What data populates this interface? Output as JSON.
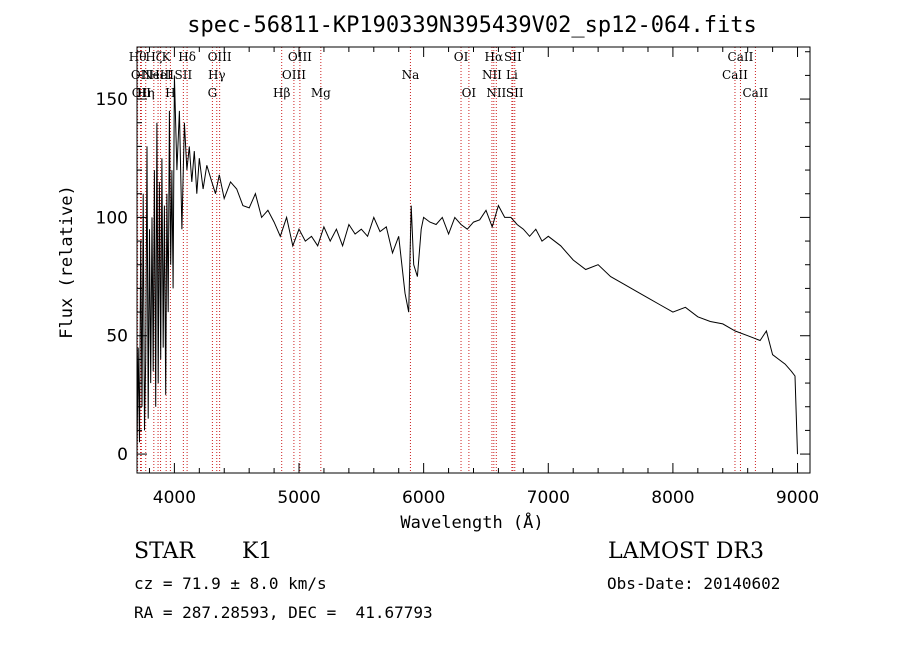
{
  "chart_data": {
    "type": "line",
    "title": "spec-56811-KP190339N395439V02_sp12-064.fits",
    "xlabel": "Wavelength (Å)",
    "ylabel": "Flux (relative)",
    "xlim": [
      3700,
      9100
    ],
    "ylim": [
      -8,
      172
    ],
    "xticks": [
      4000,
      5000,
      6000,
      7000,
      8000,
      9000
    ],
    "yticks": [
      0,
      50,
      100,
      150
    ],
    "series": [
      {
        "name": "flux",
        "x": [
          3700,
          3710,
          3720,
          3730,
          3740,
          3750,
          3760,
          3770,
          3780,
          3790,
          3800,
          3810,
          3820,
          3830,
          3840,
          3850,
          3860,
          3870,
          3880,
          3890,
          3900,
          3910,
          3920,
          3930,
          3940,
          3950,
          3960,
          3970,
          3980,
          3990,
          4000,
          4020,
          4040,
          4060,
          4080,
          4100,
          4120,
          4140,
          4160,
          4180,
          4200,
          4230,
          4260,
          4300,
          4330,
          4360,
          4400,
          4450,
          4500,
          4550,
          4600,
          4650,
          4700,
          4750,
          4800,
          4850,
          4900,
          4950,
          5000,
          5050,
          5100,
          5150,
          5200,
          5250,
          5300,
          5350,
          5400,
          5450,
          5500,
          5550,
          5600,
          5650,
          5700,
          5750,
          5800,
          5850,
          5880,
          5900,
          5920,
          5950,
          5980,
          6000,
          6050,
          6100,
          6150,
          6200,
          6250,
          6300,
          6350,
          6400,
          6450,
          6500,
          6550,
          6600,
          6650,
          6700,
          6750,
          6800,
          6850,
          6900,
          6950,
          7000,
          7100,
          7200,
          7300,
          7400,
          7500,
          7600,
          7700,
          7800,
          7900,
          8000,
          8100,
          8200,
          8300,
          8400,
          8500,
          8600,
          8700,
          8750,
          8800,
          8850,
          8900,
          8950,
          8980,
          9000
        ],
        "y": [
          0,
          45,
          5,
          90,
          20,
          110,
          10,
          40,
          130,
          15,
          95,
          30,
          100,
          35,
          120,
          20,
          140,
          30,
          115,
          40,
          125,
          45,
          105,
          25,
          110,
          60,
          145,
          80,
          120,
          70,
          160,
          120,
          145,
          95,
          140,
          120,
          130,
          115,
          128,
          110,
          125,
          112,
          122,
          115,
          110,
          118,
          108,
          115,
          112,
          105,
          104,
          110,
          100,
          103,
          98,
          92,
          100,
          88,
          95,
          90,
          92,
          88,
          96,
          90,
          95,
          88,
          97,
          93,
          95,
          92,
          100,
          94,
          96,
          85,
          92,
          68,
          60,
          105,
          80,
          75,
          95,
          100,
          98,
          97,
          100,
          93,
          100,
          97,
          95,
          98,
          99,
          103,
          96,
          105,
          100,
          100,
          97,
          95,
          92,
          95,
          90,
          92,
          88,
          82,
          78,
          80,
          75,
          72,
          69,
          66,
          63,
          60,
          62,
          58,
          56,
          55,
          52,
          50,
          48,
          52,
          42,
          40,
          38,
          35,
          33,
          0
        ]
      }
    ],
    "lines": [
      {
        "w": 3705,
        "label": "Hθ",
        "row": 0
      },
      {
        "w": 3728,
        "label": "OII",
        "row": 1
      },
      {
        "w": 3735,
        "label": "OII",
        "row": 2
      },
      {
        "w": 3770,
        "label": "Hη",
        "row": 2
      },
      {
        "w": 3835,
        "label": "Hζ",
        "row": 0
      },
      {
        "w": 3869,
        "label": "NeIII",
        "row": 1
      },
      {
        "w": 3889,
        "label": "HeI",
        "row": 1
      },
      {
        "w": 3934,
        "label": "K",
        "row": 0
      },
      {
        "w": 3968,
        "label": "H",
        "row": 2
      },
      {
        "w": 4072,
        "label": "SII",
        "row": 1
      },
      {
        "w": 4102,
        "label": "Hδ",
        "row": 0
      },
      {
        "w": 4305,
        "label": "G",
        "row": 2
      },
      {
        "w": 4340,
        "label": "Hγ",
        "row": 1
      },
      {
        "w": 4363,
        "label": "OIII",
        "row": 0
      },
      {
        "w": 4861,
        "label": "Hβ",
        "row": 2
      },
      {
        "w": 4959,
        "label": "OIII",
        "row": 1
      },
      {
        "w": 5007,
        "label": "OIII",
        "row": 0
      },
      {
        "w": 5175,
        "label": "Mg",
        "row": 2
      },
      {
        "w": 5894,
        "label": "Na",
        "row": 1
      },
      {
        "w": 6300,
        "label": "OI",
        "row": 0
      },
      {
        "w": 6363,
        "label": "OI",
        "row": 2
      },
      {
        "w": 6548,
        "label": "NII",
        "row": 1
      },
      {
        "w": 6563,
        "label": "Hα",
        "row": 0
      },
      {
        "w": 6583,
        "label": "NII",
        "row": 2
      },
      {
        "w": 6708,
        "label": "Li",
        "row": 1
      },
      {
        "w": 6716,
        "label": "SII",
        "row": 0
      },
      {
        "w": 6731,
        "label": "SII",
        "row": 2
      },
      {
        "w": 8498,
        "label": "CaII",
        "row": 1
      },
      {
        "w": 8542,
        "label": "CaII",
        "row": 0
      },
      {
        "w": 8662,
        "label": "CaII",
        "row": 2
      }
    ]
  },
  "info": {
    "class": "STAR",
    "subclass": "K1",
    "survey": "LAMOST DR3",
    "cz": "cz = 71.9 ± 8.0 km/s",
    "obs_date": "Obs-Date: 20140602",
    "radec": "RA = 287.28593, DEC =  41.67793"
  },
  "colors": {
    "line_marker": "#cc2020",
    "spectrum": "#000000",
    "axes": "#000000"
  }
}
